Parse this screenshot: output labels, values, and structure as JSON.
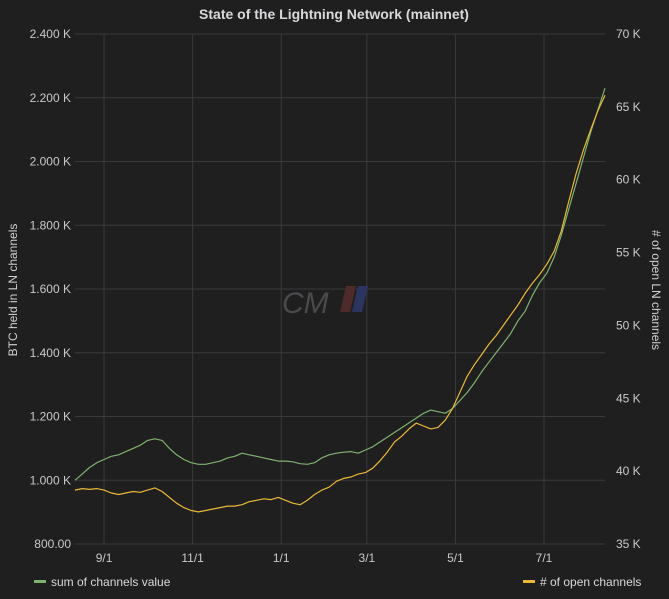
{
  "chart_data": {
    "type": "line",
    "title": "State of the Lightning Network (mainnet)",
    "xlabel": "",
    "ylabel": "BTC held in LN channels",
    "y2label": "# of open LN channels",
    "watermark": "CM",
    "x_ticks": [
      "9/1",
      "11/1",
      "1/1",
      "3/1",
      "5/1",
      "7/1"
    ],
    "x_tick_index": [
      0,
      61,
      122,
      181,
      242,
      303
    ],
    "x_max_index": 345,
    "ylim": [
      800,
      2400
    ],
    "y_ticks": [
      800,
      1000,
      1200,
      1400,
      1600,
      1800,
      2000,
      2200,
      2400
    ],
    "y_tick_labels": [
      "800.00",
      "1.000 K",
      "1.200 K",
      "1.400 K",
      "1.600 K",
      "1.800 K",
      "2.000 K",
      "2.200 K",
      "2.400 K"
    ],
    "y2lim": [
      35000,
      70000
    ],
    "y2_ticks": [
      35000,
      40000,
      45000,
      50000,
      55000,
      60000,
      65000,
      70000
    ],
    "y2_tick_labels": [
      "35 K",
      "40 K",
      "45 K",
      "50 K",
      "55 K",
      "60 K",
      "65 K",
      "70 K"
    ],
    "grid": true,
    "legend_placement": "bottom",
    "series": [
      {
        "name": "sum of channels value",
        "axis": "left",
        "color": "#7eb26d",
        "points": [
          [
            -20,
            1000
          ],
          [
            -15,
            1020
          ],
          [
            -10,
            1040
          ],
          [
            -5,
            1055
          ],
          [
            0,
            1065
          ],
          [
            5,
            1075
          ],
          [
            10,
            1080
          ],
          [
            15,
            1090
          ],
          [
            20,
            1100
          ],
          [
            25,
            1110
          ],
          [
            30,
            1125
          ],
          [
            35,
            1130
          ],
          [
            40,
            1125
          ],
          [
            45,
            1100
          ],
          [
            50,
            1080
          ],
          [
            55,
            1065
          ],
          [
            60,
            1055
          ],
          [
            65,
            1050
          ],
          [
            70,
            1050
          ],
          [
            75,
            1055
          ],
          [
            80,
            1060
          ],
          [
            85,
            1070
          ],
          [
            90,
            1075
          ],
          [
            95,
            1085
          ],
          [
            100,
            1080
          ],
          [
            105,
            1075
          ],
          [
            110,
            1070
          ],
          [
            115,
            1065
          ],
          [
            120,
            1060
          ],
          [
            125,
            1060
          ],
          [
            130,
            1058
          ],
          [
            135,
            1052
          ],
          [
            140,
            1050
          ],
          [
            145,
            1055
          ],
          [
            150,
            1070
          ],
          [
            155,
            1080
          ],
          [
            160,
            1085
          ],
          [
            165,
            1088
          ],
          [
            170,
            1090
          ],
          [
            175,
            1085
          ],
          [
            180,
            1095
          ],
          [
            185,
            1105
          ],
          [
            190,
            1120
          ],
          [
            195,
            1135
          ],
          [
            200,
            1150
          ],
          [
            205,
            1165
          ],
          [
            210,
            1180
          ],
          [
            215,
            1195
          ],
          [
            220,
            1210
          ],
          [
            225,
            1220
          ],
          [
            230,
            1215
          ],
          [
            235,
            1210
          ],
          [
            240,
            1225
          ],
          [
            245,
            1250
          ],
          [
            250,
            1275
          ],
          [
            255,
            1305
          ],
          [
            260,
            1340
          ],
          [
            265,
            1370
          ],
          [
            270,
            1400
          ],
          [
            275,
            1430
          ],
          [
            280,
            1460
          ],
          [
            285,
            1500
          ],
          [
            290,
            1530
          ],
          [
            295,
            1580
          ],
          [
            300,
            1620
          ],
          [
            305,
            1650
          ],
          [
            310,
            1700
          ],
          [
            315,
            1770
          ],
          [
            320,
            1850
          ],
          [
            325,
            1930
          ],
          [
            330,
            2010
          ],
          [
            335,
            2090
          ],
          [
            340,
            2160
          ],
          [
            345,
            2230
          ]
        ]
      },
      {
        "name": "# of open channels",
        "axis": "right",
        "color": "#eab839",
        "points": [
          [
            -20,
            38700
          ],
          [
            -15,
            38800
          ],
          [
            -10,
            38750
          ],
          [
            -5,
            38800
          ],
          [
            0,
            38700
          ],
          [
            5,
            38500
          ],
          [
            10,
            38400
          ],
          [
            15,
            38500
          ],
          [
            20,
            38600
          ],
          [
            25,
            38550
          ],
          [
            30,
            38700
          ],
          [
            35,
            38850
          ],
          [
            40,
            38600
          ],
          [
            45,
            38200
          ],
          [
            50,
            37800
          ],
          [
            55,
            37500
          ],
          [
            60,
            37300
          ],
          [
            65,
            37200
          ],
          [
            70,
            37300
          ],
          [
            75,
            37400
          ],
          [
            80,
            37500
          ],
          [
            85,
            37600
          ],
          [
            90,
            37600
          ],
          [
            95,
            37700
          ],
          [
            100,
            37900
          ],
          [
            105,
            38000
          ],
          [
            110,
            38100
          ],
          [
            115,
            38050
          ],
          [
            120,
            38200
          ],
          [
            125,
            38000
          ],
          [
            130,
            37800
          ],
          [
            135,
            37700
          ],
          [
            140,
            38000
          ],
          [
            145,
            38400
          ],
          [
            150,
            38700
          ],
          [
            155,
            38900
          ],
          [
            160,
            39300
          ],
          [
            165,
            39500
          ],
          [
            170,
            39600
          ],
          [
            175,
            39800
          ],
          [
            180,
            39900
          ],
          [
            185,
            40200
          ],
          [
            190,
            40700
          ],
          [
            195,
            41300
          ],
          [
            200,
            42000
          ],
          [
            205,
            42400
          ],
          [
            210,
            42900
          ],
          [
            215,
            43300
          ],
          [
            220,
            43100
          ],
          [
            225,
            42900
          ],
          [
            230,
            43000
          ],
          [
            235,
            43500
          ],
          [
            240,
            44300
          ],
          [
            245,
            45400
          ],
          [
            250,
            46500
          ],
          [
            255,
            47300
          ],
          [
            260,
            48000
          ],
          [
            265,
            48700
          ],
          [
            270,
            49300
          ],
          [
            275,
            50000
          ],
          [
            280,
            50700
          ],
          [
            285,
            51400
          ],
          [
            290,
            52200
          ],
          [
            295,
            52900
          ],
          [
            300,
            53500
          ],
          [
            305,
            54200
          ],
          [
            310,
            55100
          ],
          [
            315,
            56500
          ],
          [
            320,
            58500
          ],
          [
            325,
            60400
          ],
          [
            330,
            62000
          ],
          [
            335,
            63400
          ],
          [
            340,
            64700
          ],
          [
            345,
            65800
          ]
        ]
      }
    ]
  }
}
